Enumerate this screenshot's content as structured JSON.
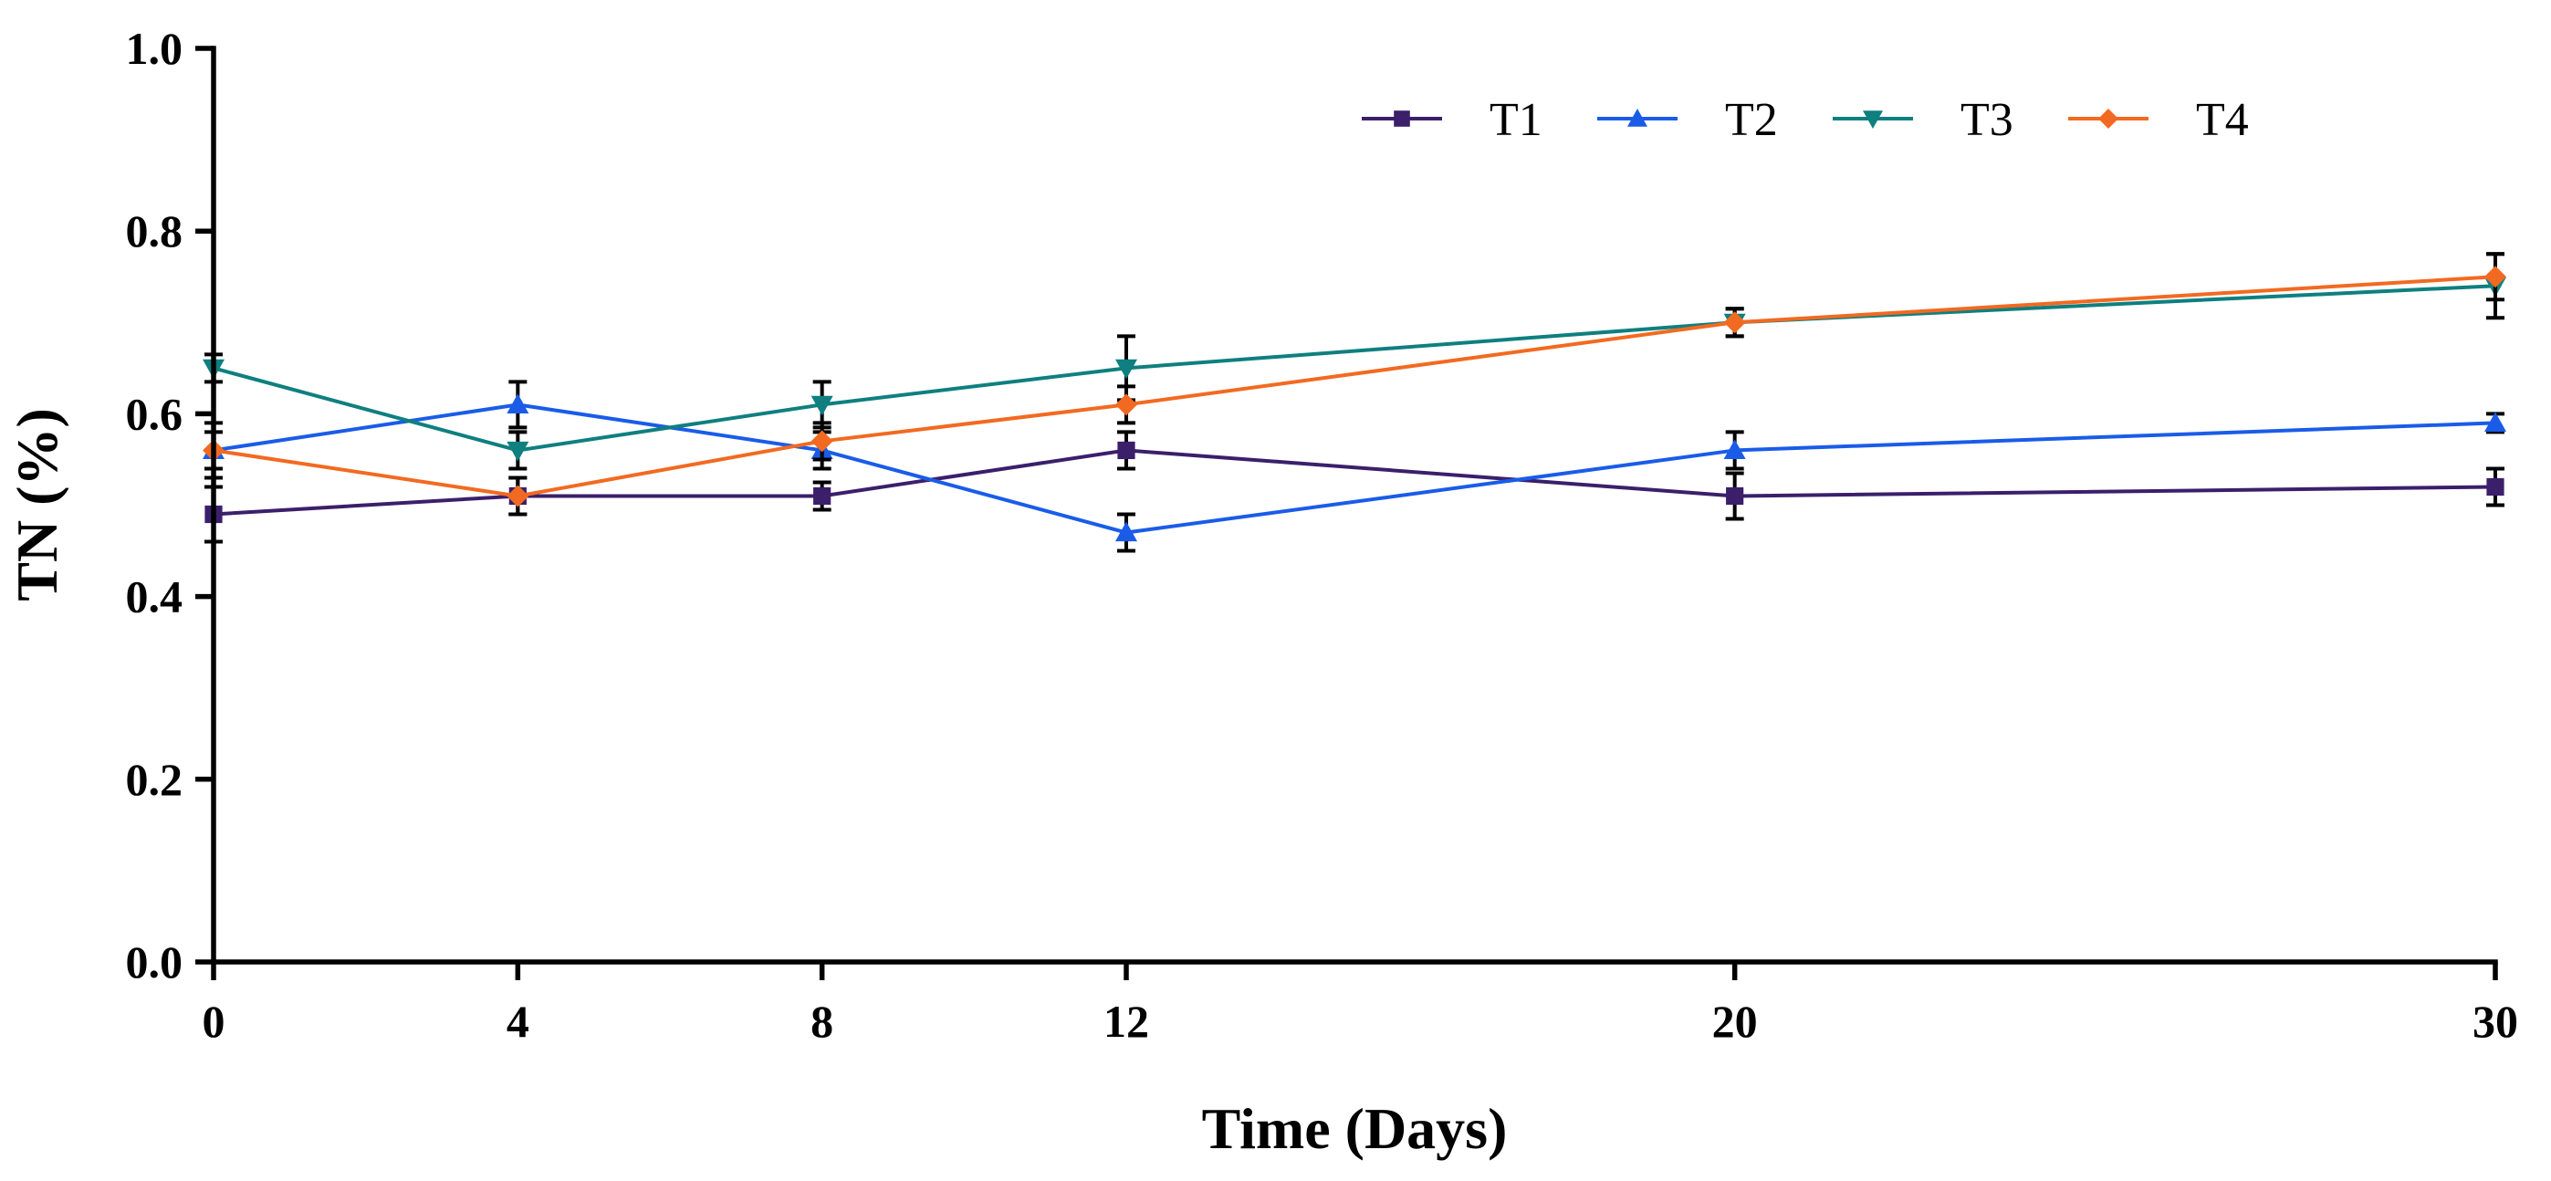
{
  "chart_data": {
    "type": "line",
    "title": "",
    "xlabel": "Time (Days)",
    "ylabel": "TN (%)",
    "x": [
      0,
      4,
      8,
      12,
      20,
      30
    ],
    "xlim": [
      0,
      30
    ],
    "ylim": [
      0.0,
      1.0
    ],
    "x_ticks": [
      "0",
      "4",
      "8",
      "12",
      "20",
      "30"
    ],
    "y_ticks": [
      "0.0",
      "0.2",
      "0.4",
      "0.6",
      "0.8",
      "1.0"
    ],
    "grid": false,
    "legend_position": "top-right",
    "series": [
      {
        "name": "T1",
        "color": "#3b1f6b",
        "marker": "square",
        "values": [
          0.49,
          0.51,
          0.51,
          0.56,
          0.51,
          0.52
        ],
        "errors": [
          0.03,
          0.02,
          0.015,
          0.02,
          0.025,
          0.02
        ]
      },
      {
        "name": "T2",
        "color": "#1a5ce8",
        "marker": "triangle-up",
        "values": [
          0.56,
          0.61,
          0.56,
          0.47,
          0.56,
          0.59
        ],
        "errors": [
          0.03,
          0.025,
          0.02,
          0.02,
          0.02,
          0.01
        ]
      },
      {
        "name": "T3",
        "color": "#0f7f7f",
        "marker": "triangle-down",
        "values": [
          0.65,
          0.56,
          0.61,
          0.65,
          0.7,
          0.74
        ],
        "errors": [
          0.015,
          0.02,
          0.025,
          0.035,
          0.015,
          0.035
        ]
      },
      {
        "name": "T4",
        "color": "#f26a21",
        "marker": "diamond",
        "values": [
          0.56,
          0.51,
          0.57,
          0.61,
          0.7,
          0.75
        ],
        "errors": [
          0.02,
          0.02,
          0.02,
          0.02,
          0.015,
          0.025
        ]
      }
    ]
  }
}
